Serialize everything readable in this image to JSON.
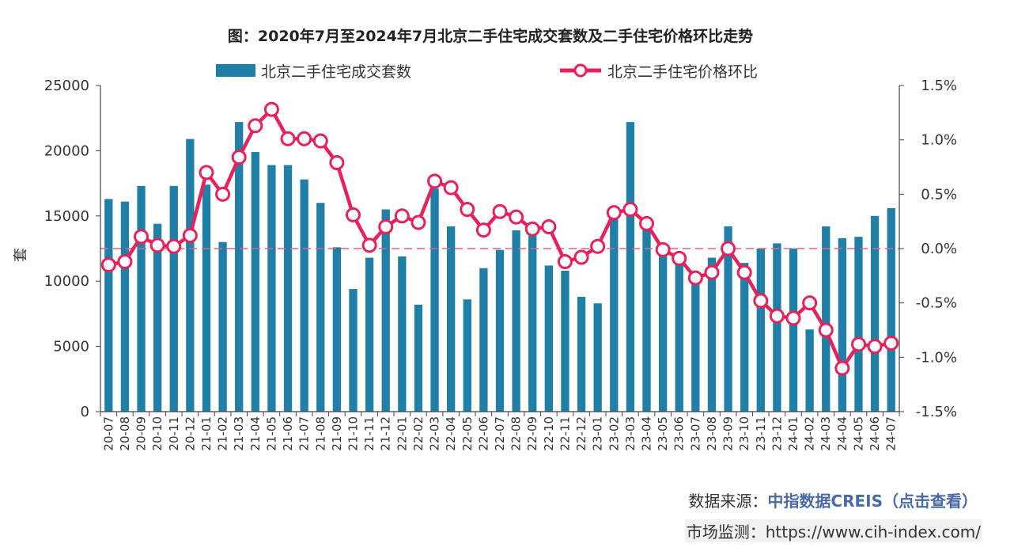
{
  "chart_data": {
    "type": "bar+line",
    "title": "图：2020年7月至2024年7月北京二手住宅成交套数及二手住宅价格环比走势",
    "categories": [
      "20-07",
      "20-08",
      "20-09",
      "20-10",
      "20-11",
      "20-12",
      "21-01",
      "21-02",
      "21-03",
      "21-04",
      "21-05",
      "21-06",
      "21-07",
      "21-08",
      "21-09",
      "21-10",
      "21-11",
      "21-12",
      "22-01",
      "22-02",
      "22-03",
      "22-04",
      "22-05",
      "22-06",
      "22-07",
      "22-08",
      "22-09",
      "22-10",
      "22-11",
      "22-12",
      "23-01",
      "23-02",
      "23-03",
      "23-04",
      "23-05",
      "23-06",
      "23-07",
      "23-08",
      "23-09",
      "23-10",
      "23-11",
      "23-12",
      "24-01",
      "24-02",
      "24-03",
      "24-04",
      "24-05",
      "24-06",
      "24-07"
    ],
    "series": [
      {
        "name": "北京二手住宅成交套数",
        "type": "bar",
        "axis": "left",
        "color": "#1f7fa6",
        "values": [
          16300,
          16100,
          17300,
          14400,
          17300,
          20900,
          17400,
          13000,
          22200,
          19900,
          18900,
          18900,
          17800,
          16000,
          12600,
          9400,
          11800,
          15500,
          11900,
          8200,
          17100,
          14200,
          8600,
          11000,
          12400,
          13900,
          13800,
          11200,
          10800,
          8800,
          8300,
          14900,
          22200,
          14400,
          12800,
          11700,
          10400,
          11800,
          14200,
          11400,
          12500,
          12900,
          12500,
          6300,
          14200,
          13300,
          13400,
          15000,
          15600
        ]
      },
      {
        "name": "北京二手住宅价格环比",
        "type": "line",
        "axis": "right",
        "unit": "%",
        "color": "#e8215a",
        "values": [
          -0.15,
          -0.12,
          0.11,
          0.03,
          0.02,
          0.12,
          0.7,
          0.5,
          0.84,
          1.13,
          1.28,
          1.01,
          1.01,
          0.99,
          0.79,
          0.31,
          0.03,
          0.2,
          0.3,
          0.24,
          0.62,
          0.56,
          0.36,
          0.17,
          0.34,
          0.29,
          0.18,
          0.2,
          -0.12,
          -0.08,
          0.02,
          0.33,
          0.36,
          0.23,
          -0.01,
          -0.09,
          -0.27,
          -0.22,
          0.0,
          -0.22,
          -0.48,
          -0.62,
          -0.64,
          -0.5,
          -0.75,
          -1.1,
          -0.88,
          -0.9,
          -0.87
        ]
      }
    ],
    "ylabel": "套",
    "ylim": [
      0,
      25000
    ],
    "yticks": [
      0,
      5000,
      10000,
      15000,
      20000,
      25000
    ],
    "y2lim": [
      -1.5,
      1.5
    ],
    "y2ticks": [
      "-1.5%",
      "-1.0%",
      "-0.5%",
      "0.0%",
      "0.5%",
      "1.0%",
      "1.5%"
    ],
    "y2tick_values": [
      -1.5,
      -1.0,
      -0.5,
      0,
      0.5,
      1.0,
      1.5
    ],
    "reference_line": {
      "value": 0,
      "axis": "right",
      "style": "dashed",
      "color": "#e0608c"
    },
    "legend": "top-center"
  },
  "footer": {
    "source_label": "数据来源：",
    "source_link": "中指数据CREIS（点击查看）",
    "monitor_label": "市场监测：",
    "monitor_url": "https://www.cih-index.com/"
  }
}
